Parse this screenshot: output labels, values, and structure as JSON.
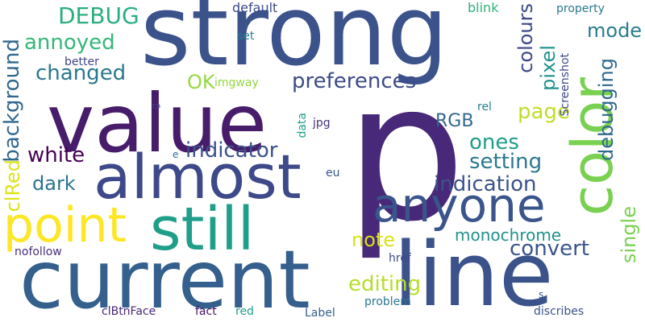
{
  "words": [
    {
      "text": "p",
      "color": "#482878"
    },
    {
      "text": "strong",
      "color": "#3b528b"
    },
    {
      "text": "value",
      "color": "#471c6b"
    },
    {
      "text": "current",
      "color": "#35608d"
    },
    {
      "text": "line",
      "color": "#3b528b"
    },
    {
      "text": "almost",
      "color": "#3e4989"
    },
    {
      "text": "still",
      "color": "#1f9e89"
    },
    {
      "text": "point",
      "color": "#fde725"
    },
    {
      "text": "anyone",
      "color": "#3a548c"
    },
    {
      "text": "color",
      "color": "#7ad151"
    },
    {
      "text": "DEBUG",
      "color": "#29af7f"
    },
    {
      "text": "annoyed",
      "color": "#35b779"
    },
    {
      "text": "changed",
      "color": "#2a788e"
    },
    {
      "text": "background",
      "color": "#31688e"
    },
    {
      "text": "OK",
      "color": "#95d840"
    },
    {
      "text": "preferences",
      "color": "#3e4a89"
    },
    {
      "text": "white",
      "color": "#440154"
    },
    {
      "text": "dark",
      "color": "#2c728e"
    },
    {
      "text": "indicator",
      "color": "#3b528b"
    },
    {
      "text": "setting",
      "color": "#2a788e"
    },
    {
      "text": "ones",
      "color": "#1f9e89"
    },
    {
      "text": "indication",
      "color": "#3b528b"
    },
    {
      "text": "note",
      "color": "#d8e219"
    },
    {
      "text": "convert",
      "color": "#3a548c"
    },
    {
      "text": "monochrome",
      "color": "#21918c"
    },
    {
      "text": "editing",
      "color": "#b5de2b"
    },
    {
      "text": "clRed",
      "color": "#dde318"
    },
    {
      "text": "RGB",
      "color": "#31688e"
    },
    {
      "text": "page",
      "color": "#bddf26"
    },
    {
      "text": "colours",
      "color": "#3e4989"
    },
    {
      "text": "pixel",
      "color": "#21918c"
    },
    {
      "text": "mode",
      "color": "#287c8e"
    },
    {
      "text": "debugging",
      "color": "#31688e"
    },
    {
      "text": "single",
      "color": "#7ad151"
    },
    {
      "text": "default",
      "color": "#3e4989"
    },
    {
      "text": "blink",
      "color": "#2db27d"
    },
    {
      "text": "property",
      "color": "#29798e"
    },
    {
      "text": "set",
      "color": "#287c8e"
    },
    {
      "text": "better",
      "color": "#414487"
    },
    {
      "text": "imgway",
      "color": "#95d840"
    },
    {
      "text": "data",
      "color": "#1f9e89"
    },
    {
      "text": "jpg",
      "color": "#46337e"
    },
    {
      "text": "rel",
      "color": "#26828e"
    },
    {
      "text": "Screenshot",
      "color": "#3e4989"
    },
    {
      "text": "g",
      "color": "#443a83"
    },
    {
      "text": "e",
      "color": "#31688e"
    },
    {
      "text": "eu",
      "color": "#39568c"
    },
    {
      "text": "nofollow",
      "color": "#472d7b"
    },
    {
      "text": "href",
      "color": "#3e4989"
    },
    {
      "text": "s",
      "color": "#39568c"
    },
    {
      "text": "clBtnFace",
      "color": "#482878"
    },
    {
      "text": "fact",
      "color": "#471365"
    },
    {
      "text": "red",
      "color": "#1f9e89"
    },
    {
      "text": "Label",
      "color": "#35608d"
    },
    {
      "text": "problem",
      "color": "#2a788e"
    },
    {
      "text": "discribes",
      "color": "#3b528b"
    }
  ]
}
